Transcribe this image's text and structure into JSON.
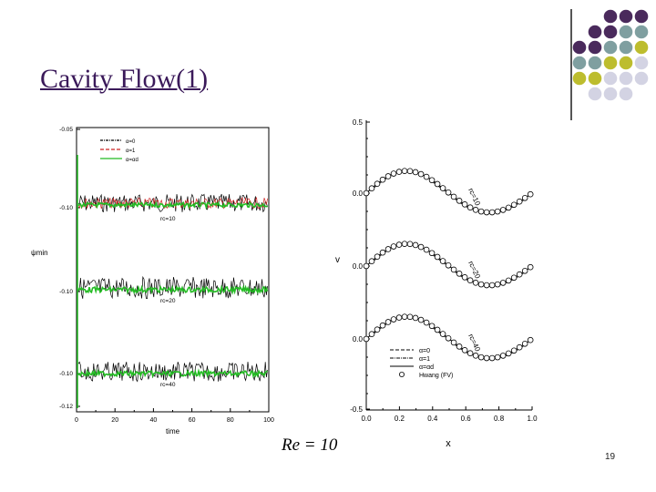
{
  "slide": {
    "title": "Cavity Flow(1)",
    "re_label": "Re = 10",
    "page_number": "19",
    "dot_colors": [
      "#4a2a5c",
      "#7f9fa0",
      "#bdbd2e",
      "#d3d3e3"
    ]
  },
  "chart_data": [
    {
      "type": "line",
      "title": "",
      "xlabel": "time",
      "ylabel": "ψmin",
      "xlim": [
        0,
        100
      ],
      "x_ticks": [
        "0",
        "20",
        "40",
        "60",
        "80",
        "100"
      ],
      "y_ticks": [
        "-0.05",
        "-0.10",
        "-0.10",
        "-0.10",
        "-0.12"
      ],
      "panel_labels": [
        "rc=10",
        "rc=20",
        "rc=40"
      ],
      "legend": [
        "α=0",
        "α=1",
        "α=αd"
      ],
      "legend_position": "top-left",
      "series_colors": [
        "#000000",
        "#cc2222",
        "#22bb22"
      ],
      "grid": false
    },
    {
      "type": "line",
      "title": "",
      "xlabel": "x",
      "ylabel": "v",
      "xlim": [
        0.0,
        1.0
      ],
      "x_ticks": [
        "0.0",
        "0.2",
        "0.4",
        "0.6",
        "0.8",
        "1.0"
      ],
      "y_ticks": [
        "0.5",
        "0.0",
        "0.0",
        "0.0",
        "-0.5"
      ],
      "curve_labels": [
        "rc=10",
        "rc=20",
        "rc=40"
      ],
      "legend": [
        "α=0",
        "α=1",
        "α=αd",
        "Hwang (FV)"
      ],
      "legend_position": "bottom-right",
      "grid": false
    }
  ]
}
